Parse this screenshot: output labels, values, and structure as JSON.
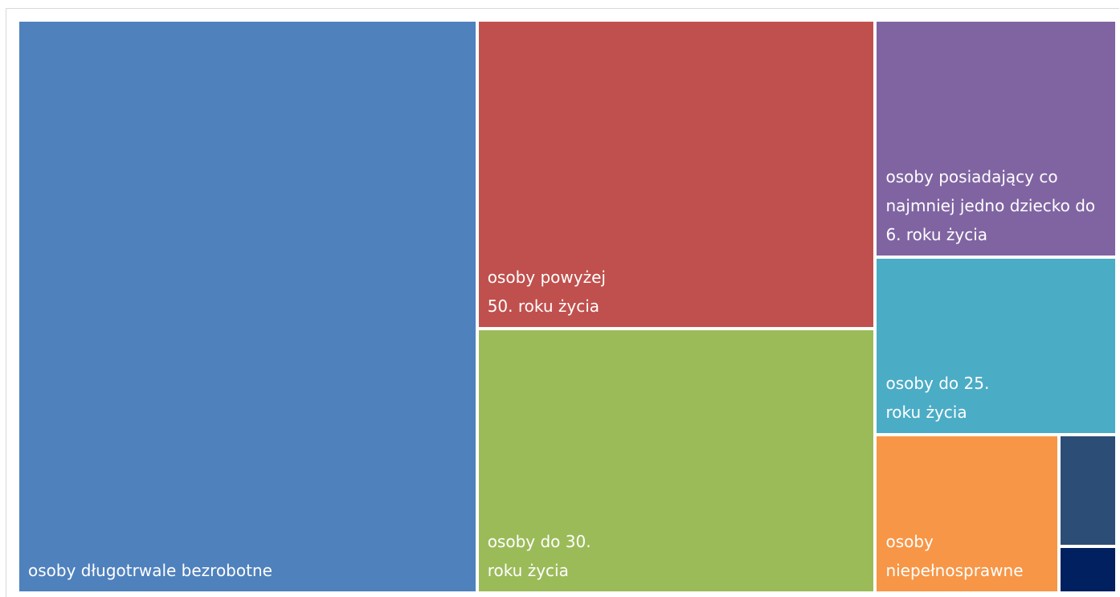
{
  "chart_data": {
    "type": "treemap",
    "title": "",
    "categories": [
      "osoby długotrwale bezrobotne",
      "osoby powyżej\n50. roku życia",
      "osoby do 30.\nroku życia",
      "osoby posiadający co\nnajmniej jedno dziecko do\n6. roku życia",
      "osoby do 25.\nroku życia",
      "osoby\nniepełnosprawne",
      "",
      ""
    ],
    "values": [
      41.6,
      19.5,
      16.7,
      9.0,
      6.8,
      4.6,
      1.0,
      0.4
    ],
    "colors": [
      "#4f81bd",
      "#c0504d",
      "#9bbb59",
      "#8064a2",
      "#4bacc6",
      "#f79646",
      "#2c4d75",
      "#002060"
    ],
    "legend": false
  }
}
